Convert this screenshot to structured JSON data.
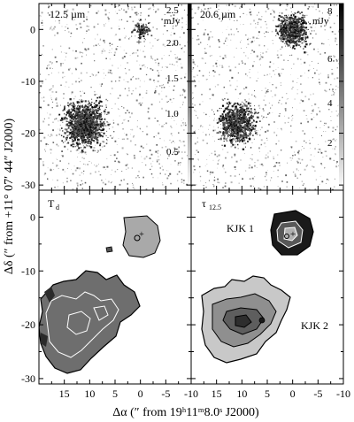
{
  "figure": {
    "panels": [
      {
        "id": "p1",
        "label": "12.5 µm",
        "unit": "mJy",
        "colorbar_ticks": [
          "2.5",
          "2.0",
          "1.5",
          "1.0",
          "0.5"
        ]
      },
      {
        "id": "p2",
        "label": "20.6 µm",
        "unit": "mJy",
        "colorbar_ticks": [
          "8",
          "6",
          "4",
          "2"
        ]
      },
      {
        "id": "p3",
        "label": "T",
        "label_sub": "d"
      },
      {
        "id": "p4",
        "label": "τ",
        "label_sub": "12.5",
        "annotations": [
          "KJK 1",
          "KJK 2"
        ]
      }
    ],
    "y_axis_title": "Δδ (″ from +11° 07′ 44″ J2000)",
    "x_axis_title": "Δα (″  from  19ʰ11ᵐ8.0ˢ J2000)",
    "x_ticks": [
      "15",
      "10",
      "5",
      "0",
      "-5",
      "-10"
    ],
    "y_ticks": [
      "0",
      "-10",
      "-20",
      "-30"
    ],
    "palette": {
      "ink": "#000000",
      "contour_light": "#ffffff",
      "background": "#ffffff"
    }
  },
  "chart_data": {
    "type": "heatmap",
    "xlabel": "Δα (″  from  19ʰ11ᵐ8.0ˢ J2000)",
    "ylabel": "Δδ (″ from +11° 07′ 44″ J2000)",
    "xlim": [
      20,
      -10
    ],
    "ylim": [
      -31,
      5
    ],
    "x_ticks": [
      15,
      10,
      5,
      0,
      -5,
      -10
    ],
    "y_ticks": [
      0,
      -10,
      -20,
      -30
    ],
    "sources": [
      {
        "name": "KJK 1",
        "x": 0,
        "y": 0
      },
      {
        "name": "KJK 2",
        "x": 11,
        "y": -18
      }
    ],
    "panels": [
      {
        "label": "12.5 µm",
        "colorbar": {
          "unit": "mJy",
          "range": [
            0,
            2.7
          ],
          "ticks": [
            0.5,
            1.0,
            1.5,
            2.0,
            2.5
          ]
        }
      },
      {
        "label": "20.6 µm",
        "colorbar": {
          "unit": "mJy",
          "range": [
            0,
            8.5
          ],
          "ticks": [
            2,
            4,
            6,
            8
          ]
        }
      },
      {
        "label": "Td"
      },
      {
        "label": "τ12.5"
      }
    ]
  }
}
